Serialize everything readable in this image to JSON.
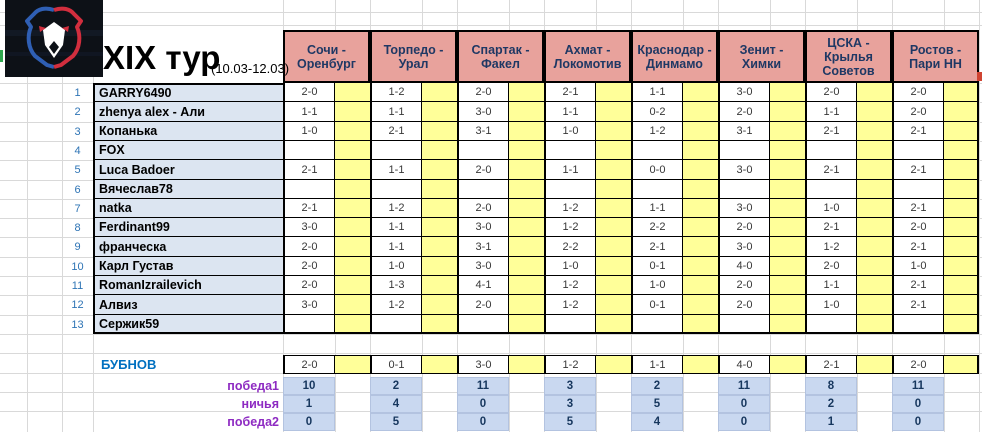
{
  "title": {
    "round": "XIX тур",
    "dates": "(10.03-12.03)"
  },
  "matches": [
    "Сочи - Оренбург",
    "Торпедо - Урал",
    "Спартак - Факел",
    "Ахмат - Локомотив",
    "Краснодар - Динмамо",
    "Зенит - Химки",
    "ЦСКА - Крылья Советов",
    "Ростов - Пари НН"
  ],
  "players": [
    {
      "num": "1",
      "name": "GARRY6490",
      "predictions": [
        "2-0",
        "1-2",
        "2-0",
        "2-1",
        "1-1",
        "3-0",
        "2-0",
        "2-0"
      ]
    },
    {
      "num": "2",
      "name": "zhenya alex - Али",
      "predictions": [
        "1-1",
        "1-1",
        "3-0",
        "1-1",
        "0-2",
        "2-0",
        "1-1",
        "2-0"
      ]
    },
    {
      "num": "3",
      "name": "Копанька",
      "predictions": [
        "1-0",
        "2-1",
        "3-1",
        "1-0",
        "1-2",
        "3-1",
        "2-1",
        "2-1"
      ]
    },
    {
      "num": "4",
      "name": "FOX",
      "predictions": [
        "",
        "",
        "",
        "",
        "",
        "",
        "",
        ""
      ]
    },
    {
      "num": "5",
      "name": "Luca Badoer",
      "predictions": [
        "2-1",
        "1-1",
        "2-0",
        "1-1",
        "0-0",
        "3-0",
        "2-1",
        "2-1"
      ]
    },
    {
      "num": "6",
      "name": "Вячеслав78",
      "predictions": [
        "",
        "",
        "",
        "",
        "",
        "",
        "",
        ""
      ]
    },
    {
      "num": "7",
      "name": "natka",
      "predictions": [
        "2-1",
        "1-2",
        "2-0",
        "1-2",
        "1-1",
        "3-0",
        "1-0",
        "2-1"
      ]
    },
    {
      "num": "8",
      "name": "Ferdinant99",
      "predictions": [
        "3-0",
        "1-1",
        "3-0",
        "1-2",
        "2-2",
        "2-0",
        "2-1",
        "2-0"
      ]
    },
    {
      "num": "9",
      "name": "франческа",
      "predictions": [
        "2-0",
        "1-1",
        "3-1",
        "2-2",
        "2-1",
        "3-0",
        "1-2",
        "2-1"
      ]
    },
    {
      "num": "10",
      "name": "Карл Густав",
      "predictions": [
        "2-0",
        "1-0",
        "3-0",
        "1-0",
        "0-1",
        "4-0",
        "2-0",
        "1-0"
      ]
    },
    {
      "num": "11",
      "name": "RomanIzrailevich",
      "predictions": [
        "2-0",
        "1-3",
        "4-1",
        "1-2",
        "1-0",
        "2-0",
        "1-1",
        "2-1"
      ]
    },
    {
      "num": "12",
      "name": "Алвиз",
      "predictions": [
        "3-0",
        "1-2",
        "2-0",
        "1-2",
        "0-1",
        "2-0",
        "1-0",
        "2-1"
      ]
    },
    {
      "num": "13",
      "name": "Сержик59",
      "predictions": [
        "",
        "",
        "",
        "",
        "",
        "",
        "",
        ""
      ]
    }
  ],
  "bubnov": {
    "name": "БУБНОВ",
    "predictions": [
      "2-0",
      "0-1",
      "3-0",
      "1-2",
      "1-1",
      "4-0",
      "2-1",
      "2-0"
    ]
  },
  "stats": [
    {
      "label": "победа1",
      "values": [
        "10",
        "2",
        "11",
        "3",
        "2",
        "11",
        "8",
        "11"
      ]
    },
    {
      "label": "ничья",
      "values": [
        "1",
        "4",
        "0",
        "3",
        "5",
        "0",
        "2",
        "0"
      ]
    },
    {
      "label": "победа2",
      "values": [
        "0",
        "5",
        "0",
        "5",
        "4",
        "0",
        "1",
        "0"
      ]
    }
  ],
  "colors": {
    "header_bg": "#E8A29C",
    "header_text": "#1F3864",
    "points_bg": "#FFFF99",
    "name_bg": "#DCE5F1",
    "stats_bg": "#C9D8F0",
    "stat_text": "#17375E",
    "label_purple": "#8E2BC2",
    "bubnov_blue": "#0070C0",
    "rownum_blue": "#2E74B5",
    "logo_blue": "#2F5FB4",
    "logo_red": "#D22E3E",
    "logo_bg": "#0D1117"
  }
}
